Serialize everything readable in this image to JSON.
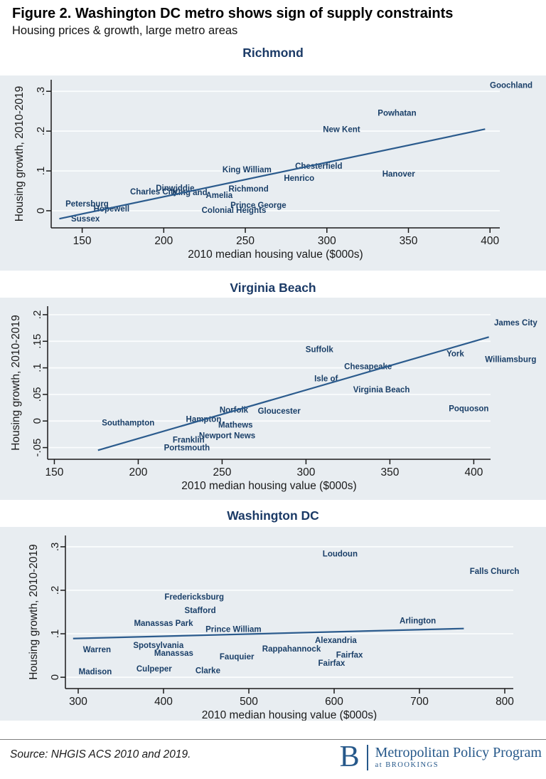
{
  "header": {
    "title": "Figure 2. Washington DC metro shows sign of supply constraints",
    "subtitle": "Housing prices & growth, large metro areas"
  },
  "footer": {
    "source": "Source: NHGIS ACS 2010 and 2019.",
    "logo_letter": "B",
    "logo_title": "Metropolitan Policy Program",
    "logo_subtitle": "at BROOKINGS"
  },
  "colors": {
    "band_bg": "#e8edf1",
    "grid": "#fbfdfe",
    "axis": "#1a1a1a",
    "tick_text": "#1a1a1a",
    "point_label": "#1a3f68",
    "chart_title": "#1b3a66",
    "trend_line": "#2b5b8d",
    "footer_navy": "#26588a"
  },
  "chart_data": [
    {
      "type": "scatter",
      "title": "Richmond",
      "xlabel": "2010 median housing value ($000s)",
      "ylabel": "Housing growth, 2010-2019",
      "x_ticks": [
        150,
        200,
        250,
        300,
        350,
        400
      ],
      "x_tick_labels": [
        "150",
        "200",
        "250",
        "300",
        "350",
        "400"
      ],
      "y_ticks": [
        0,
        0.1,
        0.2,
        0.3
      ],
      "y_tick_labels": [
        "0",
        ".1",
        ".2",
        ".3"
      ],
      "xlim": [
        131,
        406
      ],
      "ylim": [
        -0.043,
        0.329
      ],
      "grid": true,
      "trend": {
        "x1": 136,
        "y1": -0.02,
        "x2": 397,
        "y2": 0.205
      },
      "points": [
        {
          "label": "Sussex",
          "x": 152,
          "y": -0.02
        },
        {
          "label": "Petersburg",
          "x": 153,
          "y": 0.018
        },
        {
          "label": "Hopewell",
          "x": 168,
          "y": 0.005
        },
        {
          "label": "Charles City",
          "x": 194,
          "y": 0.048
        },
        {
          "label": "Dinwiddie",
          "x": 207,
          "y": 0.057
        },
        {
          "label": "King and",
          "x": 216,
          "y": 0.046
        },
        {
          "label": "Amelia",
          "x": 234,
          "y": 0.039
        },
        {
          "label": "Colonial Heights",
          "x": 243,
          "y": 0.002
        },
        {
          "label": "Prince George",
          "x": 258,
          "y": 0.014
        },
        {
          "label": "Richmond",
          "x": 252,
          "y": 0.055
        },
        {
          "label": "King William",
          "x": 251,
          "y": 0.104
        },
        {
          "label": "Henrico",
          "x": 283,
          "y": 0.082
        },
        {
          "label": "Chesterfield",
          "x": 295,
          "y": 0.113
        },
        {
          "label": "Hanover",
          "x": 344,
          "y": 0.093
        },
        {
          "label": "New Kent",
          "x": 309,
          "y": 0.205
        },
        {
          "label": "Powhatan",
          "x": 343,
          "y": 0.246
        },
        {
          "label": "Goochland",
          "x": 413,
          "y": 0.316
        }
      ]
    },
    {
      "type": "scatter",
      "title": "Virginia Beach",
      "xlabel": "2010 median housing value ($000s)",
      "ylabel": "Housing growth, 2010-2019",
      "x_ticks": [
        150,
        200,
        250,
        300,
        350,
        400
      ],
      "x_tick_labels": [
        "150",
        "200",
        "250",
        "300",
        "350",
        "400"
      ],
      "y_ticks": [
        -0.05,
        0,
        0.05,
        0.1,
        0.15,
        0.2
      ],
      "y_tick_labels": [
        "-.05",
        "0",
        ".05",
        ".1",
        ".15",
        ".2"
      ],
      "xlim": [
        146,
        410
      ],
      "ylim": [
        -0.072,
        0.216
      ],
      "grid": true,
      "trend": {
        "x1": 176,
        "y1": -0.055,
        "x2": 409,
        "y2": 0.158
      },
      "points": [
        {
          "label": "Southampton",
          "x": 194,
          "y": -0.003
        },
        {
          "label": "Portsmouth",
          "x": 229,
          "y": -0.05
        },
        {
          "label": "Franklin",
          "x": 230,
          "y": -0.035
        },
        {
          "label": "Newport News",
          "x": 253,
          "y": -0.027
        },
        {
          "label": "Mathews",
          "x": 258,
          "y": -0.007
        },
        {
          "label": "Hampton",
          "x": 239,
          "y": 0.004
        },
        {
          "label": "Norfolk",
          "x": 257,
          "y": 0.021
        },
        {
          "label": "Gloucester",
          "x": 284,
          "y": 0.019
        },
        {
          "label": "Isle of",
          "x": 312,
          "y": 0.08
        },
        {
          "label": "Virginia Beach",
          "x": 345,
          "y": 0.059
        },
        {
          "label": "Chesapeake",
          "x": 337,
          "y": 0.103
        },
        {
          "label": "Suffolk",
          "x": 308,
          "y": 0.135
        },
        {
          "label": "Poquoson",
          "x": 397,
          "y": 0.024
        },
        {
          "label": "York",
          "x": 389,
          "y": 0.127
        },
        {
          "label": "Williamsburg",
          "x": 422,
          "y": 0.116
        },
        {
          "label": "James City",
          "x": 425,
          "y": 0.185
        }
      ]
    },
    {
      "type": "scatter",
      "title": "Washington DC",
      "xlabel": "2010 median housing value ($000s)",
      "ylabel": "Housing growth, 2010-2019",
      "x_ticks": [
        300,
        400,
        500,
        600,
        700,
        800
      ],
      "x_tick_labels": [
        "300",
        "400",
        "500",
        "600",
        "700",
        "800"
      ],
      "y_ticks": [
        0,
        0.1,
        0.2,
        0.3
      ],
      "y_tick_labels": [
        "0",
        ".1",
        ".2",
        ".3"
      ],
      "xlim": [
        285,
        810
      ],
      "ylim": [
        -0.026,
        0.326
      ],
      "grid": true,
      "trend": {
        "x1": 294,
        "y1": 0.089,
        "x2": 752,
        "y2": 0.112
      },
      "points": [
        {
          "label": "Madison",
          "x": 320,
          "y": 0.013
        },
        {
          "label": "Warren",
          "x": 322,
          "y": 0.064
        },
        {
          "label": "Culpeper",
          "x": 389,
          "y": 0.02
        },
        {
          "label": "Spotsylvania",
          "x": 394,
          "y": 0.074
        },
        {
          "label": "Manassas",
          "x": 412,
          "y": 0.056
        },
        {
          "label": "Clarke",
          "x": 452,
          "y": 0.016
        },
        {
          "label": "Fauquier",
          "x": 486,
          "y": 0.048
        },
        {
          "label": "Rappahannock",
          "x": 550,
          "y": 0.066
        },
        {
          "label": "Manassas Park",
          "x": 400,
          "y": 0.125
        },
        {
          "label": "Stafford",
          "x": 443,
          "y": 0.154
        },
        {
          "label": "Fredericksburg",
          "x": 436,
          "y": 0.185
        },
        {
          "label": "Prince William",
          "x": 482,
          "y": 0.111
        },
        {
          "label": "Loudoun",
          "x": 607,
          "y": 0.284
        },
        {
          "label": "Alexandria",
          "x": 602,
          "y": 0.085
        },
        {
          "label": "Fairfax",
          "x": 618,
          "y": 0.052
        },
        {
          "label": "Fairfax",
          "x": 597,
          "y": 0.033
        },
        {
          "label": "Arlington",
          "x": 698,
          "y": 0.13
        },
        {
          "label": "Falls Church",
          "x": 788,
          "y": 0.244
        }
      ]
    }
  ]
}
